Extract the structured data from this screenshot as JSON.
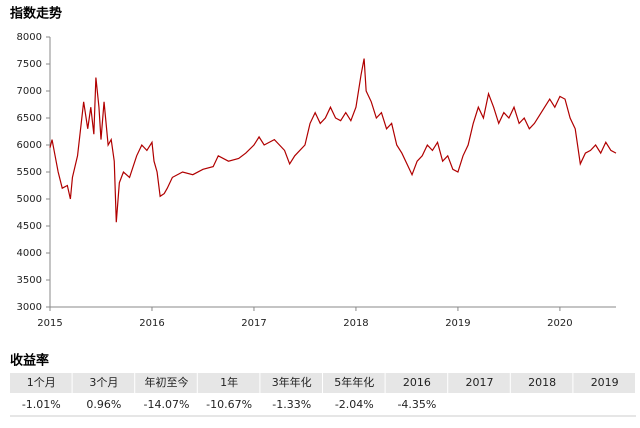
{
  "chart_data": {
    "type": "line",
    "title": "指数走势",
    "x": [
      2015.0,
      2015.02,
      2015.05,
      2015.08,
      2015.12,
      2015.17,
      2015.2,
      2015.22,
      2015.27,
      2015.3,
      2015.33,
      2015.37,
      2015.4,
      2015.43,
      2015.45,
      2015.48,
      2015.5,
      2015.53,
      2015.57,
      2015.6,
      2015.63,
      2015.65,
      2015.68,
      2015.72,
      2015.78,
      2015.85,
      2015.9,
      2015.95,
      2016.0,
      2016.02,
      2016.05,
      2016.08,
      2016.12,
      2016.15,
      2016.2,
      2016.3,
      2016.4,
      2016.5,
      2016.6,
      2016.65,
      2016.75,
      2016.85,
      2016.92,
      2017.0,
      2017.05,
      2017.1,
      2017.2,
      2017.3,
      2017.35,
      2017.4,
      2017.5,
      2017.55,
      2017.6,
      2017.65,
      2017.7,
      2017.75,
      2017.8,
      2017.85,
      2017.9,
      2017.95,
      2018.0,
      2018.05,
      2018.08,
      2018.1,
      2018.15,
      2018.2,
      2018.25,
      2018.3,
      2018.35,
      2018.4,
      2018.45,
      2018.5,
      2018.55,
      2018.6,
      2018.65,
      2018.7,
      2018.75,
      2018.8,
      2018.85,
      2018.9,
      2018.95,
      2019.0,
      2019.05,
      2019.1,
      2019.15,
      2019.2,
      2019.25,
      2019.3,
      2019.35,
      2019.4,
      2019.45,
      2019.5,
      2019.55,
      2019.6,
      2019.65,
      2019.7,
      2019.75,
      2019.8,
      2019.85,
      2019.9,
      2019.95,
      2020.0,
      2020.05,
      2020.1,
      2020.15,
      2020.2,
      2020.25,
      2020.3,
      2020.35,
      2020.4,
      2020.45,
      2020.5,
      2020.55
    ],
    "series": [
      {
        "color": "#b00000",
        "values": [
          5950,
          6100,
          5800,
          5500,
          5200,
          5250,
          5000,
          5400,
          5800,
          6300,
          6800,
          6300,
          6700,
          6200,
          7250,
          6700,
          6100,
          6800,
          6000,
          6100,
          5700,
          4570,
          5300,
          5500,
          5400,
          5800,
          6000,
          5900,
          6050,
          5700,
          5500,
          5050,
          5100,
          5200,
          5400,
          5500,
          5450,
          5550,
          5600,
          5800,
          5700,
          5750,
          5850,
          6000,
          6150,
          6000,
          6100,
          5900,
          5650,
          5800,
          6000,
          6400,
          6600,
          6400,
          6500,
          6700,
          6500,
          6450,
          6600,
          6450,
          6700,
          7300,
          7600,
          7000,
          6800,
          6500,
          6600,
          6300,
          6400,
          6000,
          5850,
          5650,
          5450,
          5700,
          5800,
          6000,
          5900,
          6050,
          5700,
          5800,
          5550,
          5500,
          5800,
          6000,
          6400,
          6700,
          6500,
          6950,
          6700,
          6400,
          6600,
          6500,
          6700,
          6400,
          6500,
          6300,
          6400,
          6550,
          6700,
          6850,
          6700,
          6900,
          6850,
          6500,
          6300,
          5650,
          5850,
          5900,
          6000,
          5850,
          6050,
          5900,
          5850
        ]
      }
    ],
    "xlim": [
      2015,
      2020.55
    ],
    "xticks": [
      2015,
      2016,
      2017,
      2018,
      2019,
      2020
    ],
    "ylim": [
      3000,
      8000
    ],
    "yticks": [
      3000,
      3500,
      4000,
      4500,
      5000,
      5500,
      6000,
      6500,
      7000,
      7500,
      8000
    ]
  },
  "returns": {
    "title": "收益率",
    "header": [
      "1个月",
      "3个月",
      "年初至今",
      "1年",
      "3年年化",
      "5年年化",
      "2016",
      "2017",
      "2018",
      "2019"
    ],
    "values": [
      "-1.01%",
      "0.96%",
      "-14.07%",
      "-10.67%",
      "-1.33%",
      "-2.04%",
      "-4.35%",
      "",
      "",
      ""
    ]
  }
}
